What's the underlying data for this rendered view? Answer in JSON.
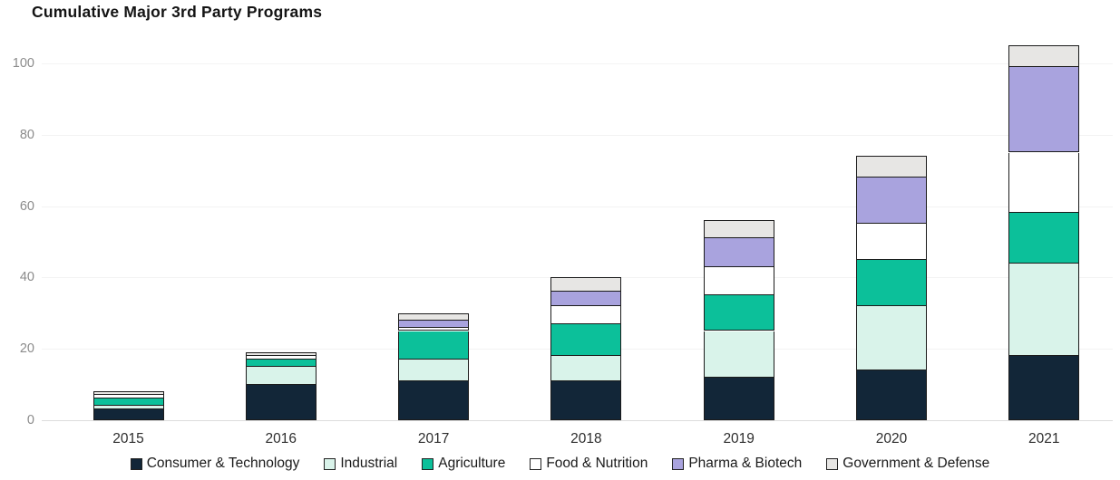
{
  "title": "Cumulative Major 3rd Party Programs",
  "colors": {
    "background": "#ffffff",
    "segment_border": "#1b1b1b",
    "gridline": "#f3f3f3",
    "axis_line": "#dcdcdc",
    "y_tick_text": "#8b8b8b",
    "x_tick_text": "#2e2e2e",
    "title_text": "#141414",
    "legend_text": "#1a1a1a"
  },
  "chart_data": {
    "type": "bar",
    "stacked": true,
    "title": "Cumulative Major 3rd Party Programs",
    "xlabel": "",
    "ylabel": "",
    "categories": [
      "2015",
      "2016",
      "2017",
      "2018",
      "2019",
      "2020",
      "2021"
    ],
    "series": [
      {
        "name": "Consumer & Technology",
        "color": "#122638",
        "values": [
          3,
          10,
          11,
          11,
          12,
          14,
          18
        ]
      },
      {
        "name": "Industrial",
        "color": "#d9f3ea",
        "values": [
          1,
          5,
          6,
          7,
          13,
          18,
          26
        ]
      },
      {
        "name": "Agriculture",
        "color": "#0cc09a",
        "values": [
          2,
          2,
          8,
          9,
          10,
          13,
          14
        ]
      },
      {
        "name": "Food & Nutrition",
        "color": "#ffffff",
        "values": [
          1,
          1,
          1,
          5,
          8,
          10,
          17
        ]
      },
      {
        "name": "Pharma & Biotech",
        "color": "#a9a3de",
        "values": [
          0,
          0,
          2,
          4,
          8,
          13,
          24
        ]
      },
      {
        "name": "Government & Defense",
        "color": "#e7e6e4",
        "values": [
          1,
          1,
          2,
          4,
          5,
          6,
          6
        ]
      }
    ],
    "totals": [
      8,
      19,
      30,
      40,
      56,
      74,
      105
    ],
    "yticks": [
      0,
      20,
      40,
      60,
      80,
      100
    ],
    "ylim": [
      0,
      105
    ],
    "grid": "faint horizontal gridlines",
    "legend_position": "bottom"
  }
}
